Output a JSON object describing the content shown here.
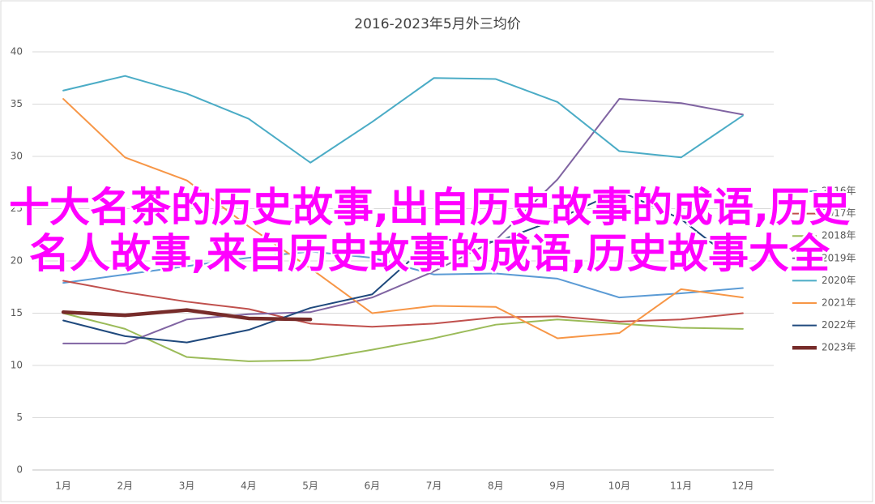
{
  "chart_data": {
    "type": "line",
    "title": "2016-2023年5月外三均价",
    "categories": [
      "1月",
      "2月",
      "3月",
      "4月",
      "5月",
      "6月",
      "7月",
      "8月",
      "9月",
      "10月",
      "11月",
      "12月"
    ],
    "ylim": [
      0,
      40
    ],
    "yticks": [
      0,
      5,
      10,
      15,
      20,
      25,
      30,
      35,
      40
    ],
    "grid": true,
    "legend": "right",
    "series": [
      {
        "name": "2016年",
        "color": "#5b9bd5",
        "width": 2,
        "values": [
          17.9,
          18.7,
          19.5,
          20.3,
          20.9,
          20.3,
          18.7,
          18.8,
          18.3,
          16.5,
          16.9,
          17.4
        ]
      },
      {
        "name": "2017年",
        "color": "#c0504d",
        "width": 2,
        "values": [
          18.1,
          17.0,
          16.1,
          15.4,
          14.0,
          13.7,
          14.0,
          14.6,
          14.7,
          14.2,
          14.4,
          15.0
        ]
      },
      {
        "name": "2018年",
        "color": "#9bbb59",
        "width": 2,
        "values": [
          15.0,
          13.5,
          10.8,
          10.4,
          10.5,
          11.5,
          12.6,
          13.9,
          14.4,
          14.0,
          13.6,
          13.5
        ]
      },
      {
        "name": "2019年",
        "color": "#8064a2",
        "width": 2,
        "values": [
          12.1,
          12.1,
          14.4,
          14.9,
          15.1,
          16.5,
          19.0,
          22.0,
          27.8,
          35.5,
          35.1,
          34.0
        ]
      },
      {
        "name": "2020年",
        "color": "#4bacc6",
        "width": 2,
        "values": [
          36.3,
          37.7,
          36.0,
          33.6,
          29.4,
          33.3,
          37.5,
          37.4,
          35.2,
          30.5,
          29.9,
          33.9
        ]
      },
      {
        "name": "2021年",
        "color": "#f79646",
        "width": 2,
        "values": [
          35.5,
          29.9,
          27.7,
          23.3,
          19.3,
          15.0,
          15.7,
          15.6,
          12.6,
          13.1,
          17.3,
          16.5
        ]
      },
      {
        "name": "2022年",
        "color": "#1f497d",
        "width": 2,
        "values": [
          14.3,
          12.8,
          12.2,
          13.4,
          15.5,
          16.8,
          22.1,
          21.8,
          24.0,
          26.7,
          24.0,
          19.4
        ]
      },
      {
        "name": "2023年",
        "color": "#772c2a",
        "width": 4.5,
        "values": [
          15.1,
          14.8,
          15.3,
          14.5,
          14.4,
          null,
          null,
          null,
          null,
          null,
          null,
          null
        ]
      }
    ],
    "annotation": "十大名茶的历史故事,出自历史故事的成语,历史名人故事,来自历史故事的成语,历史故事大全"
  }
}
